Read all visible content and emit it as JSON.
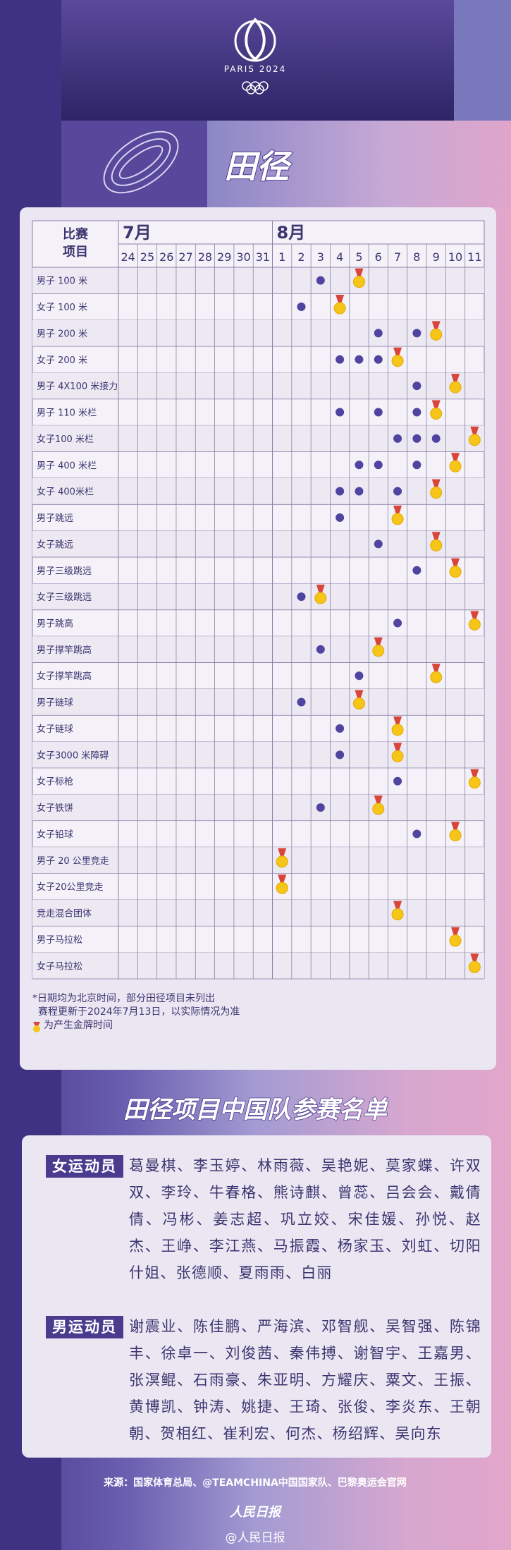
{
  "header": {
    "logo_text": "PARIS 2024"
  },
  "title": "田径",
  "table": {
    "corner": [
      "比赛",
      "项目"
    ],
    "months": [
      {
        "label": "7月",
        "days": [
          24,
          25,
          26,
          27,
          28,
          29,
          30,
          31
        ]
      },
      {
        "label": "8月",
        "days": [
          1,
          2,
          3,
          4,
          5,
          6,
          7,
          8,
          9,
          10,
          11
        ]
      }
    ],
    "rows": [
      {
        "name": "男子 100 米",
        "rounds": [
          3
        ],
        "medal": 5
      },
      {
        "name": "女子 100 米",
        "rounds": [
          2
        ],
        "medal": 4
      },
      {
        "name": "男子 200 米",
        "rounds": [
          6,
          8
        ],
        "medal": 9
      },
      {
        "name": "女子 200 米",
        "rounds": [
          4,
          5,
          6
        ],
        "medal": 7
      },
      {
        "name": "男子 4X100 米接力",
        "rounds": [
          8
        ],
        "medal": 10
      },
      {
        "name": "男子 110 米栏",
        "rounds": [
          4,
          6,
          8
        ],
        "medal": 9
      },
      {
        "name": "女子100 米栏",
        "rounds": [
          7,
          8,
          9
        ],
        "medal": 11
      },
      {
        "name": "男子 400 米栏",
        "rounds": [
          5,
          6,
          8
        ],
        "medal": 10
      },
      {
        "name": "女子 400米栏",
        "rounds": [
          4,
          5,
          7
        ],
        "medal": 9
      },
      {
        "name": "男子跳远",
        "rounds": [
          4
        ],
        "medal": 7
      },
      {
        "name": "女子跳远",
        "rounds": [
          6
        ],
        "medal": 9
      },
      {
        "name": "男子三级跳远",
        "rounds": [
          8
        ],
        "medal": 10
      },
      {
        "name": "女子三级跳远",
        "rounds": [
          2
        ],
        "medal": 3
      },
      {
        "name": "男子跳高",
        "rounds": [
          7
        ],
        "medal": 11
      },
      {
        "name": "男子撑竿跳高",
        "rounds": [
          3
        ],
        "medal": 6
      },
      {
        "name": "女子撑竿跳高",
        "rounds": [
          5
        ],
        "medal": 9
      },
      {
        "name": "男子链球",
        "rounds": [
          2
        ],
        "medal": 5
      },
      {
        "name": "女子链球",
        "rounds": [
          4
        ],
        "medal": 7
      },
      {
        "name": "女子3000 米障碍",
        "rounds": [
          4
        ],
        "medal": 7
      },
      {
        "name": "女子标枪",
        "rounds": [
          7
        ],
        "medal": 11
      },
      {
        "name": "女子铁饼",
        "rounds": [
          3
        ],
        "medal": 6
      },
      {
        "name": "女子铅球",
        "rounds": [
          8
        ],
        "medal": 10
      },
      {
        "name": "男子 20 公里竞走",
        "rounds": [],
        "medal": 1
      },
      {
        "name": "女子20公里竞走",
        "rounds": [],
        "medal": 1
      },
      {
        "name": "竞走混合团体",
        "rounds": [],
        "medal": 7
      },
      {
        "name": "男子马拉松",
        "rounds": [],
        "medal": 10
      },
      {
        "name": "女子马拉松",
        "rounds": [],
        "medal": 11
      }
    ],
    "notes": [
      "*日期均为北京时间，部分田径项目未列出",
      "赛程更新于2024年7月13日，以实际情况为准",
      "为产生金牌时间"
    ]
  },
  "roster": {
    "title": "田径项目中国队参赛名单",
    "groups": [
      {
        "label": "女运动员",
        "names": "葛曼棋、李玉婷、林雨薇、吴艳妮、莫家蝶、许双双、李玲、牛春格、熊诗麒、曾蕊、吕会会、戴倩倩、冯彬、姜志超、巩立姣、宋佳媛、孙悦、赵杰、王峥、李江燕、马振霞、杨家玉、刘虹、切阳什姐、张德顺、夏雨雨、白丽"
      },
      {
        "label": "男运动员",
        "names": "谢震业、陈佳鹏、严海滨、邓智舰、吴智强、陈锦丰、徐卓一、刘俊茜、秦伟搏、谢智宇、王嘉男、张溟鲲、石雨豪、朱亚明、方耀庆、粟文、王振、黄博凯、钟涛、姚捷、王琦、张俊、李炎东、王朝朝、贺相红、崔利宏、何杰、杨绍辉、吴向东"
      }
    ]
  },
  "footer": {
    "source": "来源：国家体育总局、@TEAMCHINA中国国家队、巴黎奥运会官网",
    "logo": "人民日报",
    "account": "@人民日报"
  }
}
